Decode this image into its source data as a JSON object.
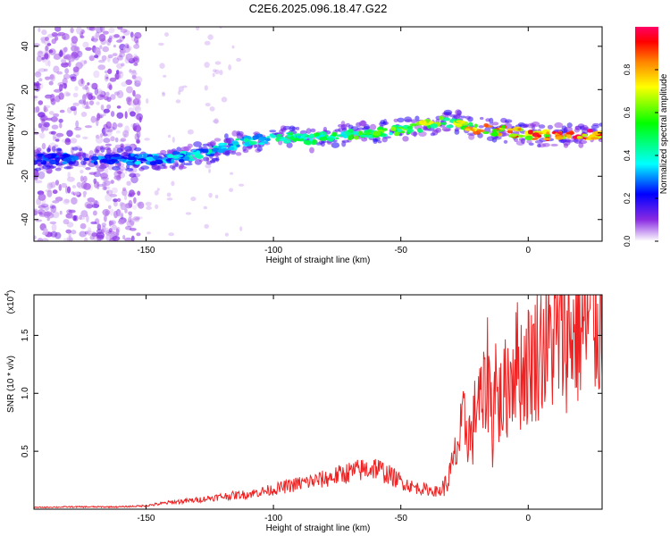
{
  "figure_title": "C2E6.2025.096.18.47.G22",
  "colorbar": {
    "label": "Normalized spectral amplitude",
    "range": [
      0.0,
      1.0
    ],
    "ticks": [
      "0.0",
      "0.2",
      "0.4",
      "0.6",
      "0.8"
    ],
    "tick_values": [
      0.0,
      0.2,
      0.4,
      0.6,
      0.8
    ],
    "colors": [
      "#ffffff",
      "#8a2be2",
      "#0000ff",
      "#00ffff",
      "#00ff00",
      "#ffff00",
      "#ff8000",
      "#ff0000",
      "#ff0066"
    ]
  },
  "chart_data": [
    {
      "type": "heatmap",
      "title": "C2E6.2025.096.18.47.G22",
      "xlabel": "Height of straight line (km)",
      "ylabel": "Frequency (Hz)",
      "xlim": [
        -194,
        29
      ],
      "ylim": [
        -50,
        49
      ],
      "xticks": [
        -150,
        -100,
        -50,
        0
      ],
      "xtick_labels": [
        "-150",
        "-100",
        "-50",
        "0"
      ],
      "yticks": [
        -40,
        -20,
        0,
        20,
        40
      ],
      "ytick_labels": [
        "-40",
        "-20",
        "0",
        "20",
        "40"
      ],
      "ridge": {
        "x": [
          -194,
          -180,
          -165,
          -155,
          -145,
          -135,
          -125,
          -115,
          -105,
          -95,
          -85,
          -75,
          -65,
          -55,
          -45,
          -35,
          -28,
          -20,
          -10,
          0,
          10,
          20,
          29
        ],
        "y": [
          -12,
          -12,
          -12,
          -12,
          -12,
          -11,
          -9,
          -5,
          -3,
          -2,
          -3,
          -1,
          0,
          1,
          2,
          5,
          5,
          2,
          1,
          -1,
          -1,
          -1,
          -1
        ],
        "amplitude": [
          0.28,
          0.28,
          0.3,
          0.32,
          0.35,
          0.38,
          0.4,
          0.42,
          0.45,
          0.48,
          0.5,
          0.55,
          0.58,
          0.6,
          0.65,
          0.7,
          0.72,
          0.8,
          0.85,
          0.9,
          0.95,
          0.97,
          0.97
        ]
      }
    },
    {
      "type": "line",
      "xlabel": "Height of straight line (km)",
      "ylabel": "SNR (10 * v/v)",
      "multiplier_label": "(x10",
      "multiplier_exponent": "4",
      "multiplier_close": ")",
      "xlim": [
        -194,
        29
      ],
      "ylim": [
        0,
        18500
      ],
      "xticks": [
        -150,
        -100,
        -50,
        0
      ],
      "xtick_labels": [
        "-150",
        "-100",
        "-50",
        "0"
      ],
      "yticks": [
        5000,
        10000,
        15000
      ],
      "ytick_labels": [
        "0.5",
        "1.0",
        "1.5"
      ],
      "color": "#ee2222",
      "series": [
        {
          "x": [
            -194,
            -180,
            -160,
            -150,
            -140,
            -130,
            -120,
            -110,
            -100,
            -90,
            -80,
            -70,
            -60,
            -50,
            -45,
            -40,
            -35,
            -32,
            -30,
            -27,
            -25,
            -22,
            -20,
            -18,
            -16,
            -15,
            -14,
            -13,
            -12,
            -10,
            -8,
            -5,
            -3,
            0,
            5,
            10,
            15,
            20,
            25,
            29
          ],
          "y": [
            150,
            200,
            200,
            300,
            600,
            800,
            1100,
            1300,
            1700,
            2200,
            2600,
            3200,
            3600,
            2400,
            1900,
            1700,
            1500,
            2200,
            3500,
            6000,
            7500,
            6000,
            10000,
            8500,
            12000,
            11000,
            6000,
            12500,
            9000,
            9500,
            11000,
            13000,
            12000,
            12500,
            14000,
            14500,
            15000,
            15500,
            16000,
            16500
          ]
        }
      ]
    }
  ]
}
